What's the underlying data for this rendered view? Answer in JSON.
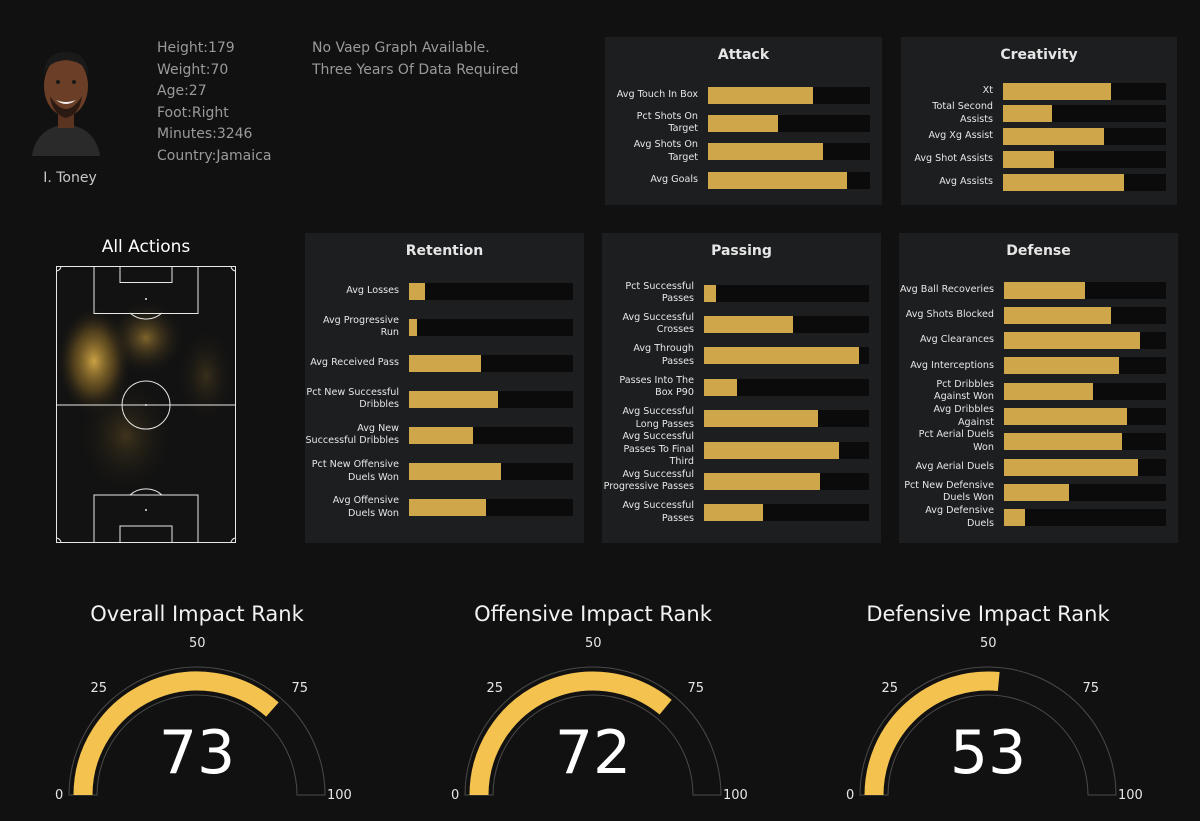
{
  "player": {
    "name": "I. Toney",
    "info": [
      "Height:179",
      "Weight:70",
      "Age:27",
      "Foot:Right",
      "Minutes:3246",
      "Country:Jamaica"
    ]
  },
  "vaep": {
    "line1": "No Vaep Graph Available.",
    "line2": "Three Years Of Data Required"
  },
  "pitch_title": "All Actions",
  "panels": {
    "attack": {
      "title": "Attack",
      "rows": [
        {
          "label": "Avg Touch In Box",
          "value": 0.65
        },
        {
          "label": "Pct Shots On Target",
          "value": 0.43
        },
        {
          "label": "Avg Shots On Target",
          "value": 0.71
        },
        {
          "label": "Avg Goals",
          "value": 0.86
        }
      ]
    },
    "creativity": {
      "title": "Creativity",
      "rows": [
        {
          "label": "Xt",
          "value": 0.66
        },
        {
          "label": "Total Second Assists",
          "value": 0.3
        },
        {
          "label": "Avg Xg Assist",
          "value": 0.62
        },
        {
          "label": "Avg Shot Assists",
          "value": 0.31
        },
        {
          "label": "Avg Assists",
          "value": 0.74
        }
      ]
    },
    "retention": {
      "title": "Retention",
      "rows": [
        {
          "label": "Avg Losses",
          "value": 0.1
        },
        {
          "label": "Avg Progressive Run",
          "value": 0.05
        },
        {
          "label": "Avg Received Pass",
          "value": 0.44
        },
        {
          "label": "Pct New Successful Dribbles",
          "value": 0.54
        },
        {
          "label": "Avg New Successful Dribbles",
          "value": 0.39
        },
        {
          "label": "Pct New Offensive Duels Won",
          "value": 0.56
        },
        {
          "label": "Avg Offensive Duels Won",
          "value": 0.47
        }
      ]
    },
    "passing": {
      "title": "Passing",
      "rows": [
        {
          "label": "Pct Successful Passes",
          "value": 0.07
        },
        {
          "label": "Avg Successful Crosses",
          "value": 0.54
        },
        {
          "label": "Avg Through Passes",
          "value": 0.94
        },
        {
          "label": "Passes Into The Box P90",
          "value": 0.2
        },
        {
          "label": "Avg Successful Long Passes",
          "value": 0.69
        },
        {
          "label": "Avg Successful Passes To Final Third",
          "value": 0.82
        },
        {
          "label": "Avg Successful Progressive Passes",
          "value": 0.7
        },
        {
          "label": "Avg Successful Passes",
          "value": 0.36
        }
      ]
    },
    "defense": {
      "title": "Defense",
      "rows": [
        {
          "label": "Avg Ball Recoveries",
          "value": 0.5
        },
        {
          "label": "Avg Shots Blocked",
          "value": 0.66
        },
        {
          "label": "Avg Clearances",
          "value": 0.84
        },
        {
          "label": "Avg Interceptions",
          "value": 0.71
        },
        {
          "label": "Pct Dribbles Against Won",
          "value": 0.55
        },
        {
          "label": "Avg Dribbles Against",
          "value": 0.76
        },
        {
          "label": "Pct Aerial Duels Won",
          "value": 0.73
        },
        {
          "label": "Avg Aerial Duels",
          "value": 0.83
        },
        {
          "label": "Pct New Defensive Duels Won",
          "value": 0.4
        },
        {
          "label": "Avg Defensive Duels",
          "value": 0.13
        }
      ]
    }
  },
  "gauges": [
    {
      "title": "Overall Impact Rank",
      "value": 73
    },
    {
      "title": "Offensive Impact Rank",
      "value": 72
    },
    {
      "title": "Defensive Impact Rank",
      "value": 53
    }
  ],
  "gauge_ticks": [
    "0",
    "25",
    "50",
    "75",
    "100"
  ],
  "colors": {
    "bar": "#d0a64b",
    "gauge": "#f4c24f",
    "background": "#111111",
    "panel": "#1d1e20"
  }
}
